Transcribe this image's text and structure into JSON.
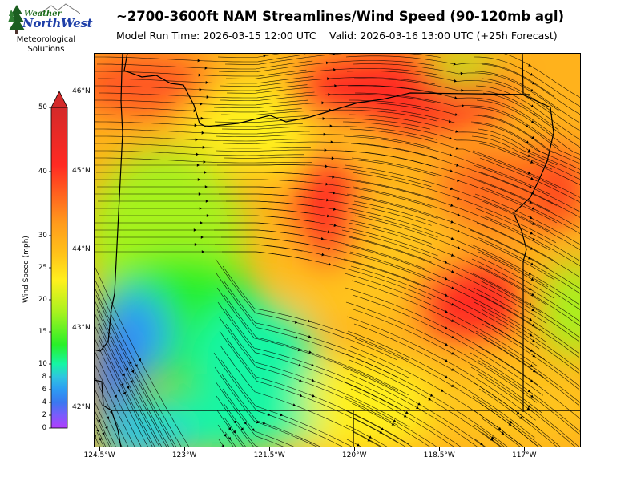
{
  "title": "~2700-3600ft NAM Streamlines/Wind Speed (90-120mb agl)",
  "model_run": "Model Run Time: 2026-03-15 12:00 UTC",
  "valid_time": "Valid: 2026-03-16 13:00 UTC  (+25h Forecast)",
  "logo": {
    "weather": "Weather",
    "brand": "NorthWest",
    "line1": "Meteorological",
    "line2": "Solutions"
  },
  "colorbar": {
    "label": "Wind Speed (mph)",
    "ticks": [
      0,
      2,
      4,
      6,
      8,
      10,
      15,
      20,
      25,
      30,
      40,
      50
    ],
    "tick_labels": [
      "0",
      "2",
      "4",
      "6",
      "8",
      "10",
      "15",
      "20",
      "25",
      "30",
      "40",
      "50"
    ],
    "extend": "max",
    "colors": [
      "#b13dfc",
      "#7a5cfc",
      "#3a78f0",
      "#2d9bf3",
      "#2ec5e0",
      "#16f6a4",
      "#28f028",
      "#a6f21f",
      "#fff01e",
      "#ffc41a",
      "#ff9a1c",
      "#ff2a22",
      "#d42a2a"
    ]
  },
  "map": {
    "lon_ticks": [
      "124.5°W",
      "123°W",
      "121.5°W",
      "120°W",
      "118.5°W",
      "117°W"
    ],
    "lat_ticks": [
      "46°N",
      "45°N",
      "44°N",
      "43°N",
      "42°N"
    ],
    "lon_values": [
      -124.5,
      -123,
      -121.5,
      -120,
      -118.5,
      -117
    ],
    "lat_values": [
      46,
      45,
      44,
      43,
      42
    ],
    "extent": {
      "lon_min": -124.6,
      "lon_max": -116.0,
      "lat_min": 41.5,
      "lat_max": 46.5
    },
    "region": "Oregon"
  }
}
